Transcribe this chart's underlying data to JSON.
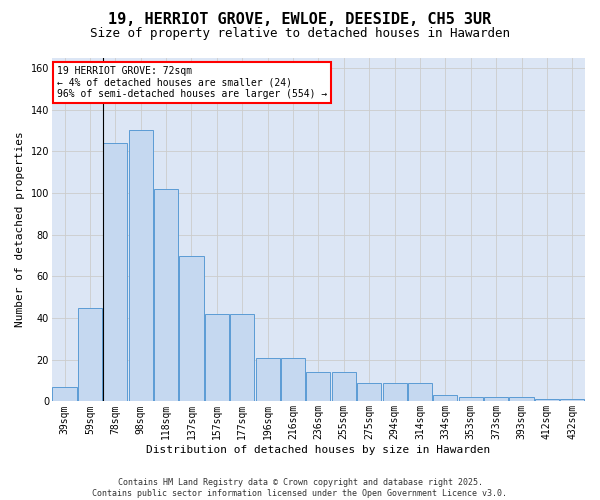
{
  "title": "19, HERRIOT GROVE, EWLOE, DEESIDE, CH5 3UR",
  "subtitle": "Size of property relative to detached houses in Hawarden",
  "xlabel": "Distribution of detached houses by size in Hawarden",
  "ylabel": "Number of detached properties",
  "bar_labels": [
    "39sqm",
    "59sqm",
    "78sqm",
    "98sqm",
    "118sqm",
    "137sqm",
    "157sqm",
    "177sqm",
    "196sqm",
    "216sqm",
    "236sqm",
    "255sqm",
    "275sqm",
    "294sqm",
    "314sqm",
    "334sqm",
    "353sqm",
    "373sqm",
    "393sqm",
    "412sqm",
    "432sqm"
  ],
  "bar_values": [
    7,
    45,
    124,
    130,
    102,
    70,
    42,
    42,
    21,
    21,
    14,
    14,
    9,
    9,
    9,
    3,
    2,
    2,
    2,
    1,
    1
  ],
  "bar_color": "#c5d8f0",
  "bar_edge_color": "#5b9bd5",
  "annotation_box_text": "19 HERRIOT GROVE: 72sqm\n← 4% of detached houses are smaller (24)\n96% of semi-detached houses are larger (554) →",
  "ylim": [
    0,
    165
  ],
  "yticks": [
    0,
    20,
    40,
    60,
    80,
    100,
    120,
    140,
    160
  ],
  "grid_color": "#cccccc",
  "background_color": "#dce6f5",
  "footer_text": "Contains HM Land Registry data © Crown copyright and database right 2025.\nContains public sector information licensed under the Open Government Licence v3.0.",
  "title_fontsize": 11,
  "subtitle_fontsize": 9,
  "axis_label_fontsize": 8,
  "tick_fontsize": 7,
  "annotation_fontsize": 7,
  "footer_fontsize": 6
}
